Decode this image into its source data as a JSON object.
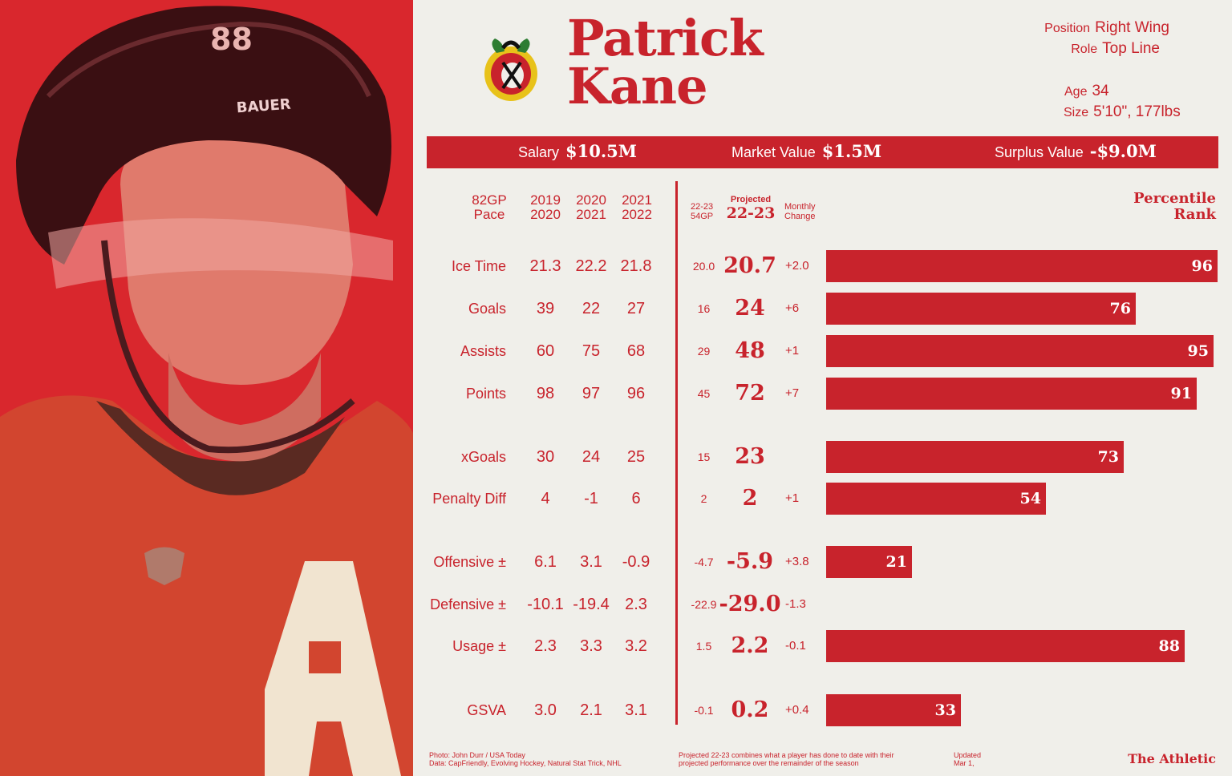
{
  "player": {
    "first_name": "Patrick",
    "last_name": "Kane",
    "position_label": "Position",
    "position": "Right Wing",
    "role_label": "Role",
    "role": "Top Line",
    "age_label": "Age",
    "age": "34",
    "size_label": "Size",
    "size": "5'10\", 177lbs",
    "helmet_brand": "BAUER",
    "helmet_number": "88"
  },
  "contract": {
    "salary_label": "Salary",
    "salary": "$10.5M",
    "market_label": "Market Value",
    "market": "$1.5M",
    "surplus_label": "Surplus Value",
    "surplus": "-$9.0M"
  },
  "headers": {
    "pace": [
      "82GP",
      "Pace"
    ],
    "s1": [
      "2019",
      "2020"
    ],
    "s2": [
      "2020",
      "2021"
    ],
    "s3": [
      "2021",
      "2022"
    ],
    "current": [
      "22-23",
      "54GP"
    ],
    "projected_small": "Projected",
    "projected_big": "22-23",
    "monthly": [
      "Monthly",
      "Change"
    ],
    "percentile": [
      "Percentile",
      "Rank"
    ]
  },
  "chart_data": {
    "type": "bar",
    "title": "Percentile Rank",
    "xlim": [
      0,
      100
    ],
    "rows": [
      {
        "stat": "Ice Time",
        "y2019_20": "21.3",
        "y2020_21": "22.2",
        "y2021_22": "21.8",
        "current": "20.0",
        "projected": "20.7",
        "change": "+2.0",
        "percentile": 96
      },
      {
        "stat": "Goals",
        "y2019_20": "39",
        "y2020_21": "22",
        "y2021_22": "27",
        "current": "16",
        "projected": "24",
        "change": "+6",
        "percentile": 76
      },
      {
        "stat": "Assists",
        "y2019_20": "60",
        "y2020_21": "75",
        "y2021_22": "68",
        "current": "29",
        "projected": "48",
        "change": "+1",
        "percentile": 95
      },
      {
        "stat": "Points",
        "y2019_20": "98",
        "y2020_21": "97",
        "y2021_22": "96",
        "current": "45",
        "projected": "72",
        "change": "+7",
        "percentile": 91
      },
      {
        "stat": "xGoals",
        "y2019_20": "30",
        "y2020_21": "24",
        "y2021_22": "25",
        "current": "15",
        "projected": "23",
        "change": "",
        "percentile": 73
      },
      {
        "stat": "Penalty Diff",
        "y2019_20": "4",
        "y2020_21": "-1",
        "y2021_22": "6",
        "current": "2",
        "projected": "2",
        "change": "+1",
        "percentile": 54
      },
      {
        "stat": "Offensive ±",
        "y2019_20": "6.1",
        "y2020_21": "3.1",
        "y2021_22": "-0.9",
        "current": "-4.7",
        "projected": "-5.9",
        "change": "+3.8",
        "percentile": 21
      },
      {
        "stat": "Defensive ±",
        "y2019_20": "-10.1",
        "y2020_21": "-19.4",
        "y2021_22": "2.3",
        "current": "-22.9",
        "projected": "-29.0",
        "change": "-1.3",
        "percentile": null
      },
      {
        "stat": "Usage ±",
        "y2019_20": "2.3",
        "y2020_21": "3.3",
        "y2021_22": "3.2",
        "current": "1.5",
        "projected": "2.2",
        "change": "-0.1",
        "percentile": 88
      },
      {
        "stat": "GSVA",
        "y2019_20": "3.0",
        "y2020_21": "2.1",
        "y2021_22": "3.1",
        "current": "-0.1",
        "projected": "0.2",
        "change": "+0.4",
        "percentile": 33
      }
    ]
  },
  "footer": {
    "photo": "Photo: John Durr / USA Today",
    "data": "Data: CapFriendly, Evolving Hockey, Natural Stat Trick, NHL",
    "note1": "Projected 22-23 combines what a player has done to date with their",
    "note2": "projected performance over the remainder of the season",
    "updated1": "Updated",
    "updated2": "Mar 1,",
    "brand": "The Athletic"
  },
  "colors": {
    "accent": "#c8232c",
    "background": "#f0efea"
  }
}
